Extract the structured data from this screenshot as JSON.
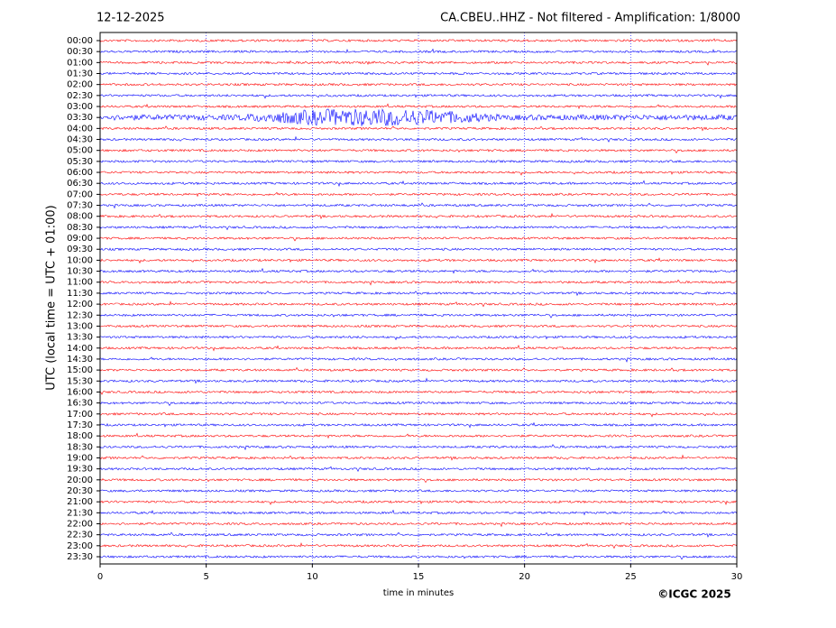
{
  "chart_data": {
    "type": "helicorder",
    "date": "12-12-2025",
    "title": "CA.CBEU..HHZ - Not filtered - Amplification: 1/8000",
    "ylabel": "UTC (local time = UTC + 01:00)",
    "xlabel": "time in minutes",
    "credit": "©ICGC 2025",
    "colors": [
      "#ff0000",
      "#0000ff"
    ],
    "grid_color": "#0000ff",
    "xlim": [
      0,
      30
    ],
    "xticks": [
      0,
      5,
      10,
      15,
      20,
      25,
      30
    ],
    "categories": [
      "00:00",
      "00:30",
      "01:00",
      "01:30",
      "02:00",
      "02:30",
      "03:00",
      "03:30",
      "04:00",
      "04:30",
      "05:00",
      "05:30",
      "06:00",
      "06:30",
      "07:00",
      "07:30",
      "08:00",
      "08:30",
      "09:00",
      "09:30",
      "10:00",
      "10:30",
      "11:00",
      "11:30",
      "12:00",
      "12:30",
      "13:00",
      "13:30",
      "14:00",
      "14:30",
      "15:00",
      "15:30",
      "16:00",
      "16:30",
      "17:00",
      "17:30",
      "18:00",
      "18:30",
      "19:00",
      "19:30",
      "20:00",
      "20:30",
      "21:00",
      "21:30",
      "22:00",
      "22:30",
      "23:00",
      "23:30"
    ]
  }
}
